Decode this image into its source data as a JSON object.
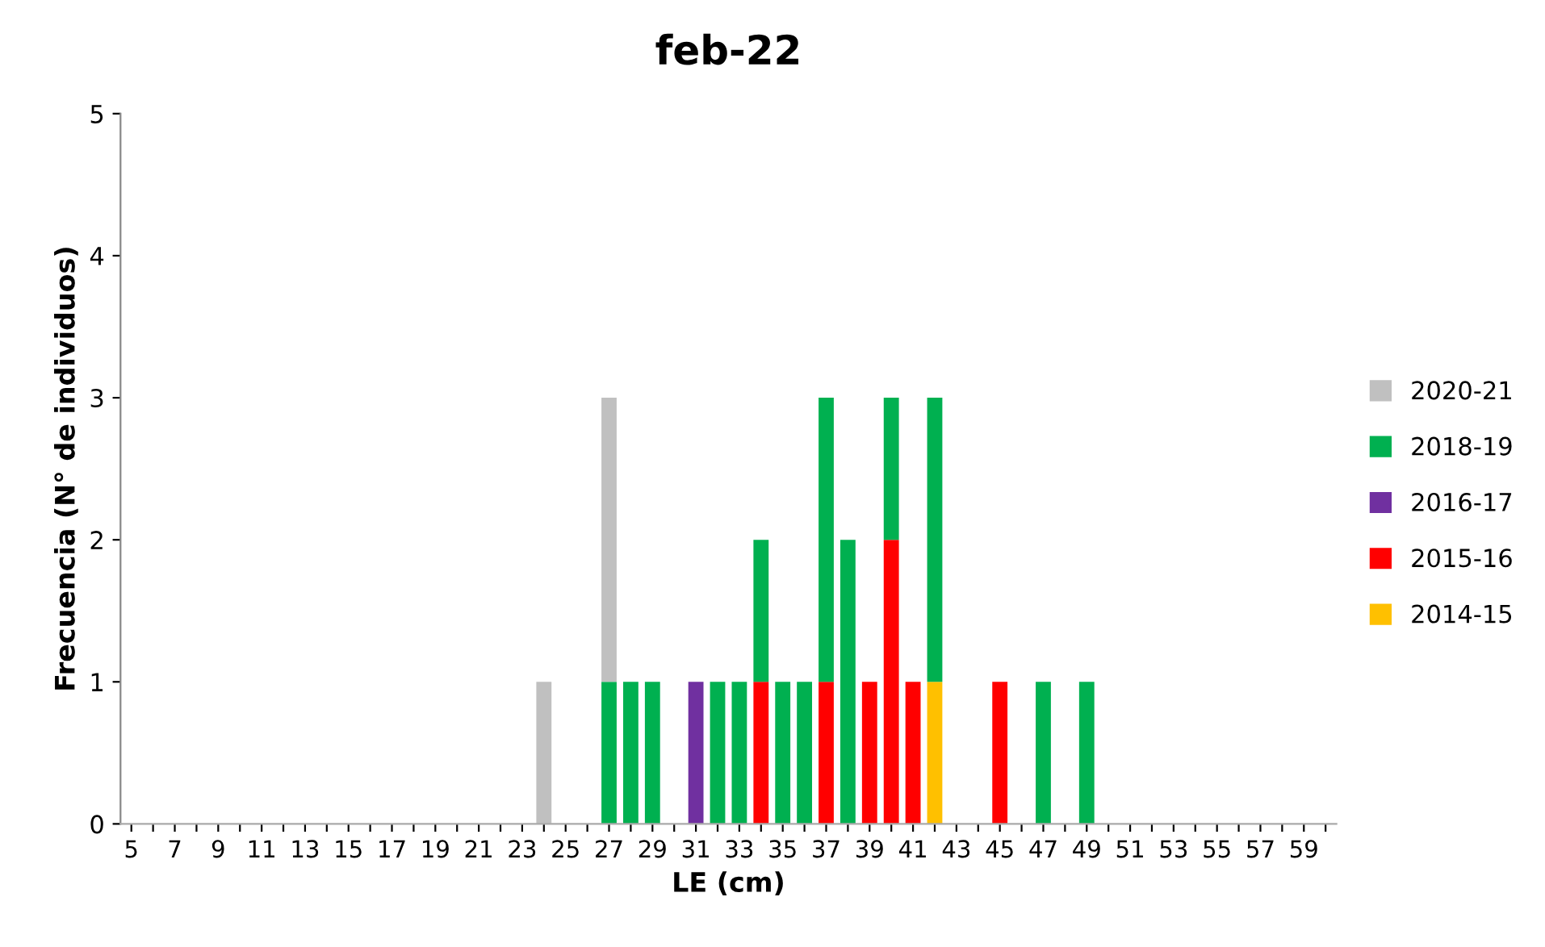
{
  "chart_data": {
    "type": "bar",
    "title": "feb-22",
    "xlabel": "LE (cm)",
    "ylabel": "Frecuencia (N° de individuos)",
    "categories": [
      "5",
      null,
      "7",
      null,
      "9",
      null,
      "11",
      null,
      "13",
      null,
      "15",
      null,
      "17",
      null,
      "19",
      null,
      "21",
      null,
      "23",
      null,
      "25",
      null,
      "27",
      null,
      "29",
      null,
      "31",
      null,
      "33",
      null,
      "35",
      null,
      "37",
      null,
      "39",
      null,
      "41",
      null,
      "43",
      null,
      "45",
      null,
      "47",
      null,
      "49",
      null,
      "51",
      null,
      "53",
      null,
      "55",
      null,
      "57",
      null,
      "59",
      null
    ],
    "stacked": true,
    "series": [
      {
        "name": "2014-15",
        "color": "#ffc000",
        "values": [
          0,
          0,
          0,
          0,
          0,
          0,
          0,
          0,
          0,
          0,
          0,
          0,
          0,
          0,
          0,
          0,
          0,
          0,
          0,
          0,
          0,
          0,
          0,
          0,
          0,
          0,
          0,
          0,
          0,
          0,
          0,
          0,
          0,
          0,
          0,
          0,
          0,
          1,
          0,
          0,
          0,
          0,
          0,
          0,
          0,
          0,
          0,
          0,
          0,
          0,
          0,
          0,
          0,
          0,
          0,
          0
        ]
      },
      {
        "name": "2015-16",
        "color": "#ff0000",
        "values": [
          0,
          0,
          0,
          0,
          0,
          0,
          0,
          0,
          0,
          0,
          0,
          0,
          0,
          0,
          0,
          0,
          0,
          0,
          0,
          0,
          0,
          0,
          0,
          0,
          0,
          0,
          0,
          0,
          0,
          1,
          0,
          0,
          1,
          0,
          1,
          2,
          1,
          0,
          0,
          0,
          1,
          0,
          0,
          0,
          0,
          0,
          0,
          0,
          0,
          0,
          0,
          0,
          0,
          0,
          0,
          0
        ]
      },
      {
        "name": "2016-17",
        "color": "#7030a0",
        "values": [
          0,
          0,
          0,
          0,
          0,
          0,
          0,
          0,
          0,
          0,
          0,
          0,
          0,
          0,
          0,
          0,
          0,
          0,
          0,
          0,
          0,
          0,
          0,
          0,
          0,
          0,
          1,
          0,
          0,
          0,
          0,
          0,
          0,
          0,
          0,
          0,
          0,
          0,
          0,
          0,
          0,
          0,
          0,
          0,
          0,
          0,
          0,
          0,
          0,
          0,
          0,
          0,
          0,
          0,
          0,
          0
        ]
      },
      {
        "name": "2018-19",
        "color": "#00b050",
        "values": [
          0,
          0,
          0,
          0,
          0,
          0,
          0,
          0,
          0,
          0,
          0,
          0,
          0,
          0,
          0,
          0,
          0,
          0,
          0,
          0,
          0,
          0,
          1,
          1,
          1,
          0,
          0,
          1,
          1,
          1,
          1,
          1,
          2,
          2,
          0,
          1,
          0,
          2,
          0,
          0,
          0,
          0,
          1,
          0,
          1,
          0,
          0,
          0,
          0,
          0,
          0,
          0,
          0,
          0,
          0,
          0
        ]
      },
      {
        "name": "2020-21",
        "color": "#c0c0c0",
        "values": [
          0,
          0,
          0,
          0,
          0,
          0,
          0,
          0,
          0,
          0,
          0,
          0,
          0,
          0,
          0,
          0,
          0,
          0,
          0,
          1,
          0,
          0,
          2,
          0,
          0,
          0,
          0,
          0,
          0,
          0,
          0,
          0,
          0,
          0,
          0,
          0,
          0,
          0,
          0,
          0,
          0,
          0,
          0,
          0,
          0,
          0,
          0,
          0,
          0,
          0,
          0,
          0,
          0,
          0,
          0,
          0
        ]
      }
    ],
    "ylim": [
      0,
      5
    ],
    "yticks": [
      0,
      1,
      2,
      3,
      4,
      5
    ],
    "grid": false,
    "legend": "right"
  }
}
